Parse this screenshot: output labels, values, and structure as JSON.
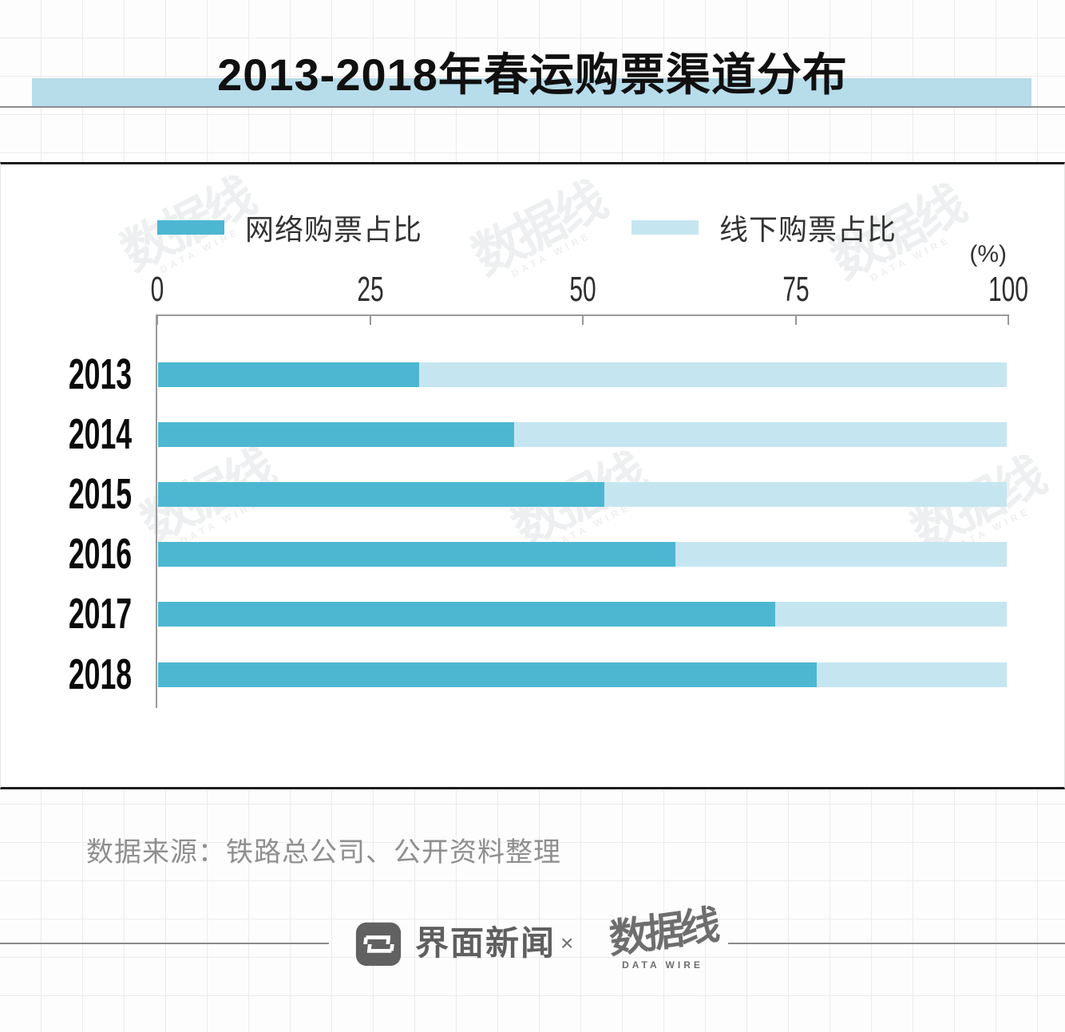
{
  "title": "2013-2018年春运购票渠道分布",
  "chart_data": {
    "type": "bar",
    "orientation": "horizontal",
    "stacked": true,
    "title": "2013-2018年春运购票渠道分布",
    "unit": "(%)",
    "categories": [
      "2013",
      "2014",
      "2015",
      "2016",
      "2017",
      "2018"
    ],
    "series": [
      {
        "name": "网络购票占比",
        "color": "#4DB7D2",
        "values": [
          30.8,
          42.0,
          52.6,
          61.0,
          72.7,
          77.6
        ]
      },
      {
        "name": "线下购票占比",
        "color": "#C5E6F1",
        "values": [
          69.2,
          58.0,
          47.4,
          39.0,
          27.3,
          22.4
        ]
      }
    ],
    "x_ticks": [
      0,
      25,
      50,
      75,
      100
    ],
    "xlim": [
      0,
      100
    ],
    "legend_position": "top",
    "grid": false
  },
  "watermark": {
    "text": "数据线",
    "subtext": "DATA WIRE"
  },
  "footer": {
    "source": "数据来源：铁路总公司、公开资料整理"
  },
  "branding": {
    "jiemian": "界面新闻",
    "separator": "×",
    "datawire": "数据线",
    "datawire_sub": "DATA WIRE"
  },
  "colors": {
    "online_bar": "#4DB7D2",
    "offline_bar": "#C5E6F1",
    "title_highlight": "#B7DCEA",
    "axis": "#999999",
    "text": "#333333",
    "source_text": "#8F8F8F",
    "brand_gray": "#5F5F5F"
  }
}
